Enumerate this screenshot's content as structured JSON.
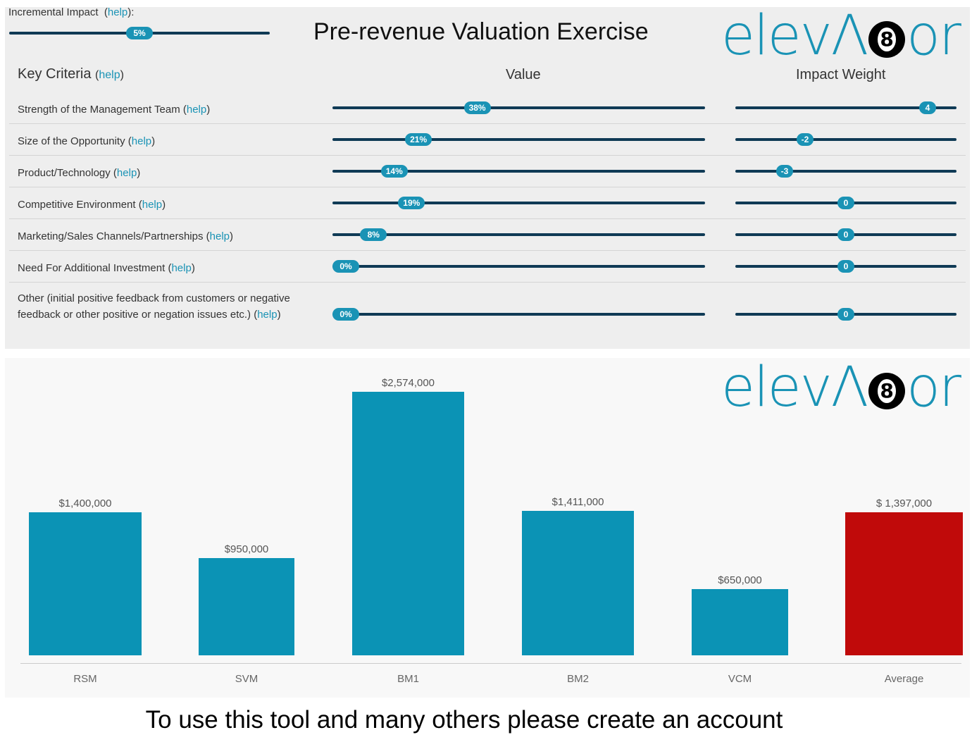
{
  "header": {
    "title": "Pre-revenue Valuation Exercise",
    "logo_text": "elevator"
  },
  "incremental": {
    "label": "Incremental Impact",
    "help": "help",
    "suffix": ":",
    "value": 5,
    "display": "5%"
  },
  "table": {
    "criteria_header": "Key Criteria",
    "criteria_help": "help",
    "value_header": "Value",
    "weight_header": "Impact Weight",
    "rows": [
      {
        "label": "Strength of the Management Team",
        "help": "help",
        "value": 38,
        "value_display": "38%",
        "weight": 4,
        "weight_display": "4"
      },
      {
        "label": "Size of the Opportunity",
        "help": "help",
        "value": 21,
        "value_display": "21%",
        "weight": -2,
        "weight_display": "-2"
      },
      {
        "label": "Product/Technology",
        "help": "help",
        "value": 14,
        "value_display": "14%",
        "weight": -3,
        "weight_display": "-3"
      },
      {
        "label": "Competitive Environment",
        "help": "help",
        "value": 19,
        "value_display": "19%",
        "weight": 0,
        "weight_display": "0"
      },
      {
        "label": "Marketing/Sales Channels/Partnerships",
        "help": "help",
        "value": 8,
        "value_display": "8%",
        "weight": 0,
        "weight_display": "0"
      },
      {
        "label": "Need For Additional Investment",
        "help": "help",
        "value": 0,
        "value_display": "0%",
        "weight": 0,
        "weight_display": "0"
      },
      {
        "label": "Other (initial positive feedback from customers or negative feedback or other positive or negation issues etc.)",
        "help": "help",
        "value": 0,
        "value_display": "0%",
        "weight": 0,
        "weight_display": "0"
      }
    ]
  },
  "chart_data": {
    "type": "bar",
    "categories": [
      "RSM",
      "SVM",
      "BM1",
      "BM2",
      "VCM",
      "Average"
    ],
    "values": [
      1400000,
      950000,
      2574000,
      1411000,
      650000,
      1397000
    ],
    "data_labels": [
      "$1,400,000",
      "$950,000",
      "$2,574,000",
      "$1,411,000",
      "$650,000",
      "$ 1,397,000"
    ],
    "colors": [
      "#0b93b5",
      "#0b93b5",
      "#0b93b5",
      "#0b93b5",
      "#0b93b5",
      "#c00a0a"
    ],
    "grid": false,
    "legend": "none"
  },
  "footer": {
    "text": "To use this tool and many others please create an account"
  }
}
